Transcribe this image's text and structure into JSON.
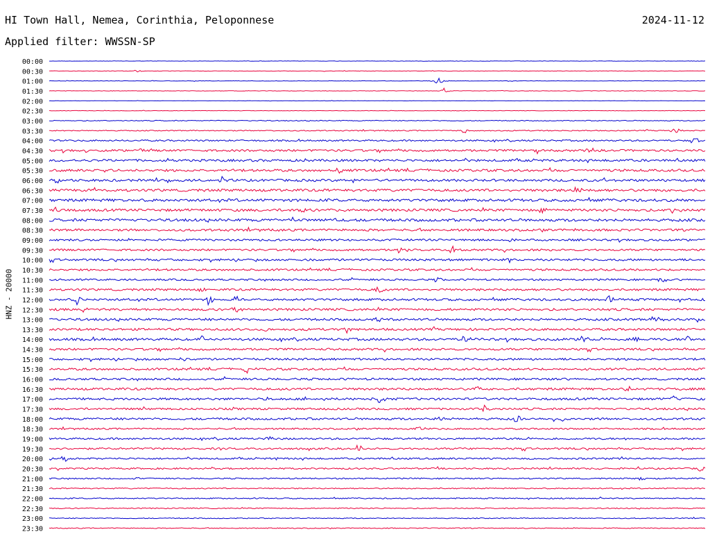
{
  "header": {
    "station": "HI Town Hall, Nemea, Corinthia, Peloponnese",
    "date": "2024-11-12",
    "filter": "Applied filter: WWSSN-SP"
  },
  "chart_data": {
    "type": "line",
    "title": "HI Town Hall, Nemea, Corinthia, Peloponnese",
    "subtitle": "Applied filter: WWSSN-SP",
    "ylabel": "HNZ - 20000",
    "xlabel": "",
    "grid": false,
    "colors": {
      "even_row": "#0000cc",
      "odd_row": "#e8003a"
    },
    "row_labels": [
      "00:00",
      "00:30",
      "01:00",
      "01:30",
      "02:00",
      "02:30",
      "03:00",
      "03:30",
      "04:00",
      "04:30",
      "05:00",
      "05:30",
      "06:00",
      "06:30",
      "07:00",
      "07:30",
      "08:00",
      "08:30",
      "09:00",
      "09:30",
      "10:00",
      "10:30",
      "11:00",
      "11:30",
      "12:00",
      "12:30",
      "13:00",
      "13:30",
      "14:00",
      "14:30",
      "15:00",
      "15:30",
      "16:00",
      "16:30",
      "17:00",
      "17:30",
      "18:00",
      "18:30",
      "19:00",
      "19:30",
      "20:00",
      "20:30",
      "21:00",
      "21:30",
      "22:00",
      "22:30",
      "23:00",
      "23:30"
    ],
    "noise_level": [
      0.2,
      0.3,
      0.3,
      0.3,
      0.2,
      0.3,
      0.6,
      0.7,
      1.1,
      1.5,
      1.6,
      1.7,
      1.7,
      1.8,
      1.9,
      1.8,
      1.9,
      1.6,
      1.4,
      1.4,
      1.5,
      1.4,
      1.3,
      1.5,
      1.6,
      1.6,
      1.6,
      1.6,
      1.7,
      1.5,
      1.5,
      1.5,
      1.5,
      1.6,
      1.6,
      1.4,
      1.5,
      1.1,
      1.3,
      1.3,
      1.2,
      1.1,
      0.9,
      0.8,
      0.8,
      0.7,
      0.6,
      0.6
    ],
    "events": [
      {
        "row": 1,
        "t": 0.13,
        "amp": 2
      },
      {
        "row": 2,
        "t": 0.59,
        "amp": 6
      },
      {
        "row": 3,
        "t": 0.6,
        "amp": 5
      },
      {
        "row": 7,
        "t": 0.63,
        "amp": 4
      },
      {
        "row": 7,
        "t": 0.95,
        "amp": 7
      },
      {
        "row": 8,
        "t": 0.98,
        "amp": 7
      },
      {
        "row": 9,
        "t": 0.05,
        "amp": 3
      },
      {
        "row": 9,
        "t": 0.14,
        "amp": 4
      },
      {
        "row": 9,
        "t": 0.74,
        "amp": 5
      },
      {
        "row": 9,
        "t": 0.82,
        "amp": 5
      },
      {
        "row": 11,
        "t": 0.08,
        "amp": 5
      },
      {
        "row": 11,
        "t": 0.44,
        "amp": 5
      },
      {
        "row": 12,
        "t": 0.01,
        "amp": 6
      },
      {
        "row": 12,
        "t": 0.18,
        "amp": 5
      },
      {
        "row": 12,
        "t": 0.26,
        "amp": 7
      },
      {
        "row": 13,
        "t": 0.07,
        "amp": 5
      },
      {
        "row": 13,
        "t": 0.8,
        "amp": 6
      },
      {
        "row": 15,
        "t": 0.01,
        "amp": 7
      },
      {
        "row": 15,
        "t": 0.38,
        "amp": 5
      },
      {
        "row": 15,
        "t": 0.75,
        "amp": 5
      },
      {
        "row": 15,
        "t": 0.95,
        "amp": 7
      },
      {
        "row": 16,
        "t": 0.37,
        "amp": 5
      },
      {
        "row": 16,
        "t": 0.43,
        "amp": 5
      },
      {
        "row": 18,
        "t": 0.7,
        "amp": 4
      },
      {
        "row": 19,
        "t": 0.53,
        "amp": 5
      },
      {
        "row": 19,
        "t": 0.61,
        "amp": 6
      },
      {
        "row": 20,
        "t": 0.7,
        "amp": 5
      },
      {
        "row": 22,
        "t": 0.59,
        "amp": 5
      },
      {
        "row": 22,
        "t": 0.93,
        "amp": 7
      },
      {
        "row": 23,
        "t": 0.23,
        "amp": 5
      },
      {
        "row": 23,
        "t": 0.5,
        "amp": 7
      },
      {
        "row": 24,
        "t": 0.04,
        "amp": 8
      },
      {
        "row": 24,
        "t": 0.24,
        "amp": 8
      },
      {
        "row": 24,
        "t": 0.28,
        "amp": 6
      },
      {
        "row": 24,
        "t": 0.85,
        "amp": 7
      },
      {
        "row": 25,
        "t": 0.05,
        "amp": 5
      },
      {
        "row": 25,
        "t": 0.28,
        "amp": 5
      },
      {
        "row": 26,
        "t": 0.5,
        "amp": 5
      },
      {
        "row": 26,
        "t": 0.92,
        "amp": 5
      },
      {
        "row": 27,
        "t": 0.33,
        "amp": 5
      },
      {
        "row": 27,
        "t": 0.45,
        "amp": 7
      },
      {
        "row": 28,
        "t": 0.23,
        "amp": 5
      },
      {
        "row": 28,
        "t": 0.63,
        "amp": 6
      },
      {
        "row": 28,
        "t": 0.81,
        "amp": 7
      },
      {
        "row": 28,
        "t": 0.89,
        "amp": 5
      },
      {
        "row": 28,
        "t": 0.97,
        "amp": 5
      },
      {
        "row": 30,
        "t": 0.2,
        "amp": 4
      },
      {
        "row": 31,
        "t": 0.3,
        "amp": 7
      },
      {
        "row": 33,
        "t": 0.65,
        "amp": 6
      },
      {
        "row": 33,
        "t": 0.88,
        "amp": 5
      },
      {
        "row": 34,
        "t": 0.5,
        "amp": 8
      },
      {
        "row": 34,
        "t": 0.95,
        "amp": 8
      },
      {
        "row": 35,
        "t": 0.66,
        "amp": 7
      },
      {
        "row": 36,
        "t": 0.59,
        "amp": 5
      },
      {
        "row": 36,
        "t": 0.71,
        "amp": 6
      },
      {
        "row": 36,
        "t": 0.78,
        "amp": 6
      },
      {
        "row": 37,
        "t": 0.56,
        "amp": 4
      },
      {
        "row": 38,
        "t": 0.33,
        "amp": 4
      },
      {
        "row": 39,
        "t": 0.47,
        "amp": 7
      },
      {
        "row": 40,
        "t": 0.02,
        "amp": 5
      },
      {
        "row": 40,
        "t": 0.34,
        "amp": 4
      },
      {
        "row": 41,
        "t": 0.99,
        "amp": 6
      },
      {
        "row": 42,
        "t": 0.13,
        "amp": 3
      },
      {
        "row": 42,
        "t": 0.9,
        "amp": 3
      }
    ]
  }
}
